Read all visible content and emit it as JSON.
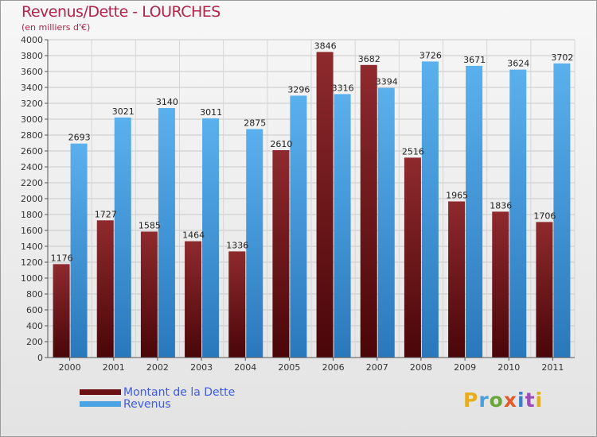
{
  "chart_data": {
    "type": "bar",
    "title": "Revenus/Dette - LOURCHES",
    "subtitle": "(en milliers d'€)",
    "categories": [
      "2000",
      "2001",
      "2002",
      "2003",
      "2004",
      "2005",
      "2006",
      "2007",
      "2008",
      "2009",
      "2010",
      "2011"
    ],
    "series": [
      {
        "name": "Montant de la Dette",
        "color": "#7a1a1e",
        "values": [
          1176,
          1727,
          1585,
          1464,
          1336,
          2610,
          3846,
          3682,
          2516,
          1965,
          1836,
          1706
        ]
      },
      {
        "name": "Revenus",
        "color": "#4aa3e2",
        "values": [
          2693,
          3021,
          3140,
          3011,
          2875,
          3296,
          3316,
          3394,
          3726,
          3671,
          3624,
          3702
        ]
      }
    ],
    "ylim": [
      0,
      4000
    ],
    "yticks": [
      0,
      200,
      400,
      600,
      800,
      1000,
      1200,
      1400,
      1600,
      1800,
      2000,
      2200,
      2400,
      2600,
      2800,
      3000,
      3200,
      3400,
      3600,
      3800,
      4000
    ],
    "grid": true,
    "legend": "bottom-left"
  },
  "logo": {
    "letters": [
      "P",
      "r",
      "o",
      "x",
      "i",
      "t",
      "i"
    ]
  }
}
